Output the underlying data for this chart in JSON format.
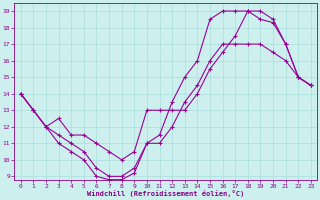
{
  "xlabel": "Windchill (Refroidissement éolien,°C)",
  "bg_color": "#cdf0ee",
  "grid_color": "#aaddda",
  "line_color": "#990099",
  "xlim": [
    -0.5,
    23.5
  ],
  "ylim": [
    8.8,
    19.5
  ],
  "xticks": [
    0,
    1,
    2,
    3,
    4,
    5,
    6,
    7,
    8,
    9,
    10,
    11,
    12,
    13,
    14,
    15,
    16,
    17,
    18,
    19,
    20,
    21,
    22,
    23
  ],
  "yticks": [
    9,
    10,
    11,
    12,
    13,
    14,
    15,
    16,
    17,
    18,
    19
  ],
  "line1_x": [
    0,
    1,
    2,
    3,
    4,
    5,
    6,
    7,
    8,
    9,
    10,
    11,
    12,
    13,
    14,
    15,
    16,
    17,
    18,
    19,
    20,
    21,
    22,
    23
  ],
  "line1_y": [
    14,
    13,
    12,
    11,
    10.5,
    10,
    9,
    8.8,
    8.8,
    9.2,
    11,
    11.5,
    13.5,
    15,
    16,
    18.5,
    19,
    19,
    19,
    18.5,
    18.3,
    17,
    15,
    14.5
  ],
  "line2_x": [
    0,
    1,
    2,
    3,
    4,
    5,
    6,
    7,
    8,
    9,
    10,
    11,
    12,
    13,
    14,
    15,
    16,
    17,
    18,
    19,
    20,
    21,
    22,
    23
  ],
  "line2_y": [
    14,
    13,
    12,
    11.5,
    11,
    10.5,
    9.5,
    9,
    9,
    9.5,
    11,
    11,
    12,
    13.5,
    14.5,
    16,
    17,
    17,
    17,
    17,
    16.5,
    16,
    15,
    14.5
  ],
  "line3_x": [
    0,
    1,
    2,
    3,
    4,
    5,
    6,
    7,
    8,
    9,
    10,
    11,
    12,
    13,
    14,
    15,
    16,
    17,
    18,
    19,
    20,
    21,
    22,
    23
  ],
  "line3_y": [
    14,
    13,
    12,
    12.5,
    11.5,
    11.5,
    11,
    10.5,
    10,
    10.5,
    13,
    13,
    13,
    13,
    14,
    15.5,
    16.5,
    17.5,
    19,
    19,
    18.5,
    17,
    15,
    14.5
  ]
}
